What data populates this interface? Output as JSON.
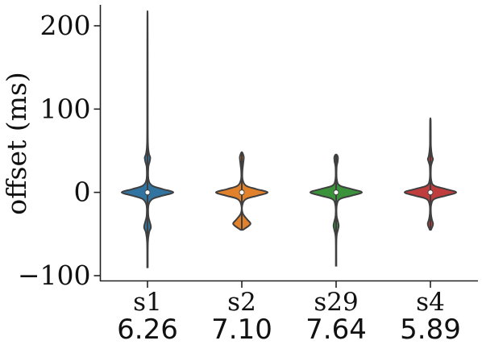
{
  "chart_data": {
    "type": "violin",
    "ylabel": "offset (ms)",
    "ylim": [
      -105,
      225
    ],
    "yticks": [
      -100,
      0,
      100,
      200
    ],
    "ytick_labels": [
      "−100",
      "0",
      "100",
      "200"
    ],
    "categories": [
      "s1",
      "s2",
      "s29",
      "s4"
    ],
    "secondary_labels": [
      "6.26",
      "7.10",
      "7.64",
      "5.89"
    ],
    "colors": [
      "#3274a1",
      "#e1812c",
      "#3a923a",
      "#c03d3e"
    ],
    "violins": [
      {
        "category": "s1",
        "min": -90,
        "max": 210,
        "median": 0,
        "q1": -3,
        "q3": 3,
        "profile": [
          [
            -90,
            0.01
          ],
          [
            -60,
            0.015
          ],
          [
            -48,
            0.06
          ],
          [
            -43,
            0.12
          ],
          [
            -40,
            0.12
          ],
          [
            -35,
            0.08
          ],
          [
            -28,
            0.03
          ],
          [
            -15,
            0.04
          ],
          [
            -8,
            0.18
          ],
          [
            -4,
            0.55
          ],
          [
            0,
            0.95
          ],
          [
            4,
            0.55
          ],
          [
            8,
            0.18
          ],
          [
            15,
            0.04
          ],
          [
            30,
            0.03
          ],
          [
            37,
            0.08
          ],
          [
            42,
            0.1
          ],
          [
            47,
            0.05
          ],
          [
            60,
            0.015
          ],
          [
            100,
            0.01
          ],
          [
            150,
            0.008
          ],
          [
            210,
            0.005
          ]
        ]
      },
      {
        "category": "s2",
        "min": -45,
        "max": 48,
        "median": 0,
        "q1": -3,
        "q3": 3,
        "profile": [
          [
            -45,
            0.04
          ],
          [
            -40,
            0.25
          ],
          [
            -37,
            0.3
          ],
          [
            -33,
            0.2
          ],
          [
            -25,
            0.03
          ],
          [
            -15,
            0.02
          ],
          [
            -8,
            0.15
          ],
          [
            -4,
            0.55
          ],
          [
            0,
            0.9
          ],
          [
            4,
            0.5
          ],
          [
            8,
            0.15
          ],
          [
            15,
            0.03
          ],
          [
            25,
            0.02
          ],
          [
            35,
            0.05
          ],
          [
            42,
            0.07
          ],
          [
            46,
            0.04
          ],
          [
            48,
            0.01
          ]
        ]
      },
      {
        "category": "s29",
        "min": -88,
        "max": 45,
        "median": 0,
        "q1": -3,
        "q3": 3,
        "profile": [
          [
            -88,
            0.01
          ],
          [
            -55,
            0.015
          ],
          [
            -45,
            0.07
          ],
          [
            -40,
            0.1
          ],
          [
            -35,
            0.07
          ],
          [
            -28,
            0.02
          ],
          [
            -15,
            0.03
          ],
          [
            -8,
            0.15
          ],
          [
            -4,
            0.6
          ],
          [
            0,
            1.0
          ],
          [
            4,
            0.6
          ],
          [
            8,
            0.15
          ],
          [
            15,
            0.03
          ],
          [
            30,
            0.02
          ],
          [
            37,
            0.06
          ],
          [
            42,
            0.07
          ],
          [
            45,
            0.03
          ]
        ]
      },
      {
        "category": "s4",
        "min": -45,
        "max": 87,
        "median": 0,
        "q1": -3,
        "q3": 3,
        "profile": [
          [
            -45,
            0.02
          ],
          [
            -40,
            0.09
          ],
          [
            -37,
            0.1
          ],
          [
            -33,
            0.06
          ],
          [
            -25,
            0.02
          ],
          [
            -15,
            0.03
          ],
          [
            -8,
            0.15
          ],
          [
            -4,
            0.6
          ],
          [
            0,
            1.0
          ],
          [
            4,
            0.6
          ],
          [
            8,
            0.15
          ],
          [
            15,
            0.03
          ],
          [
            30,
            0.02
          ],
          [
            36,
            0.06
          ],
          [
            40,
            0.1
          ],
          [
            44,
            0.06
          ],
          [
            55,
            0.02
          ],
          [
            70,
            0.015
          ],
          [
            87,
            0.01
          ]
        ]
      }
    ]
  }
}
